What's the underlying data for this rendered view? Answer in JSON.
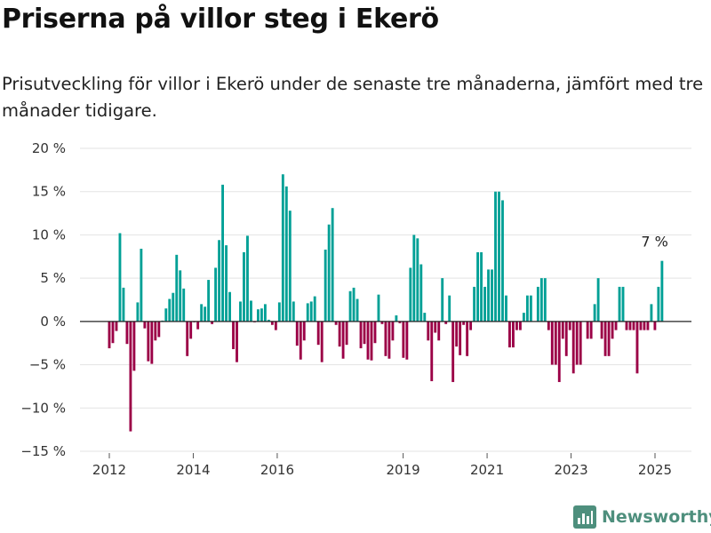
{
  "title": "Priserna på villor steg i Ekerö",
  "subtitle": "Prisutveckling för villor i Ekerö under de senaste tre månaderna, jämfört med tre månader tidigare.",
  "brand": "Newsworthy",
  "colors": {
    "positive": "#00a096",
    "negative": "#9b0046",
    "grid": "#e3e3e3",
    "zero": "#222222",
    "brand": "#4e8f7d"
  },
  "chart_data": {
    "type": "bar",
    "title": "Priserna på villor steg i Ekerö",
    "subtitle": "Prisutveckling för villor i Ekerö under de senaste tre månaderna, jämfört med tre månader tidigare.",
    "xlabel": "",
    "ylabel": "",
    "x_start": "2012-01",
    "x_end": "2025-03",
    "x_ticks": [
      {
        "label": "2012",
        "date": "2012-01"
      },
      {
        "label": "2014",
        "date": "2014-01"
      },
      {
        "label": "2016",
        "date": "2016-01"
      },
      {
        "label": "2019",
        "date": "2019-01"
      },
      {
        "label": "2021",
        "date": "2021-01"
      },
      {
        "label": "2023",
        "date": "2023-01"
      },
      {
        "label": "2025",
        "date": "2025-01"
      }
    ],
    "ylim": [
      -15,
      20
    ],
    "y_ticks": [
      {
        "value": 20,
        "label": "20 %"
      },
      {
        "value": 15,
        "label": "15 %"
      },
      {
        "value": 10,
        "label": "10 %"
      },
      {
        "value": 5,
        "label": "5 %"
      },
      {
        "value": 0,
        "label": "0 %"
      },
      {
        "value": -5,
        "label": "−5 %"
      },
      {
        "value": -10,
        "label": "−10 %"
      },
      {
        "value": -15,
        "label": "−15 %"
      }
    ],
    "grid": true,
    "annotation": {
      "text": "7 %",
      "date": "2025-03",
      "value": 7
    },
    "series": [
      {
        "name": "Prisutveckling",
        "values": [
          -3.1,
          -2.5,
          -1.1,
          10.2,
          3.9,
          -2.6,
          -12.7,
          -5.7,
          2.2,
          8.4,
          -0.8,
          -4.6,
          -4.9,
          -2.2,
          -1.8,
          0.1,
          1.5,
          2.6,
          3.3,
          7.7,
          5.9,
          3.8,
          -4.0,
          -2.0,
          -0.1,
          -0.9,
          2.0,
          1.7,
          4.8,
          -0.3,
          6.2,
          9.4,
          15.8,
          8.8,
          3.4,
          -3.2,
          -4.7,
          2.3,
          8.0,
          9.9,
          2.4,
          -0.1,
          1.4,
          1.5,
          2.0,
          0.2,
          -0.4,
          -1.0,
          2.2,
          17.0,
          15.6,
          12.8,
          2.3,
          -2.8,
          -4.4,
          -2.2,
          2.1,
          2.3,
          2.9,
          -2.7,
          -4.7,
          8.3,
          11.2,
          13.1,
          -0.4,
          -2.9,
          -4.3,
          -2.7,
          3.5,
          3.9,
          2.6,
          -3.1,
          -2.6,
          -4.4,
          -4.5,
          -2.5,
          3.1,
          -0.3,
          -4.0,
          -4.3,
          -2.2,
          0.7,
          -0.2,
          -4.2,
          -4.4,
          6.2,
          10.0,
          9.6,
          6.6,
          1.0,
          -2.2,
          -6.9,
          -1.3,
          -2.2,
          5.0,
          -0.3,
          3.0,
          -7.0,
          -2.9,
          -3.9,
          -0.4,
          -4.0,
          -1.0,
          4.0,
          8.0,
          8.0,
          4.0,
          6.0,
          6.0,
          15.0,
          15.0,
          14.0,
          3.0,
          -3.0,
          -3.0,
          -1.0,
          -1.0,
          1.0,
          3.0,
          3.0,
          0.0,
          4.0,
          5.0,
          5.0,
          -1.0,
          -5.0,
          -5.0,
          -7.0,
          -2.0,
          -4.0,
          -1.0,
          -6.0,
          -5.0,
          -5.0,
          0.0,
          -2.0,
          -2.0,
          2.0,
          5.0,
          -2.0,
          -4.0,
          -4.0,
          -2.0,
          -1.0,
          4.0,
          4.0,
          -1.0,
          -1.0,
          -1.0,
          -6.0,
          -1.0,
          -1.0,
          -1.0,
          2.0,
          -1.0,
          4.0,
          7.0
        ]
      }
    ]
  }
}
